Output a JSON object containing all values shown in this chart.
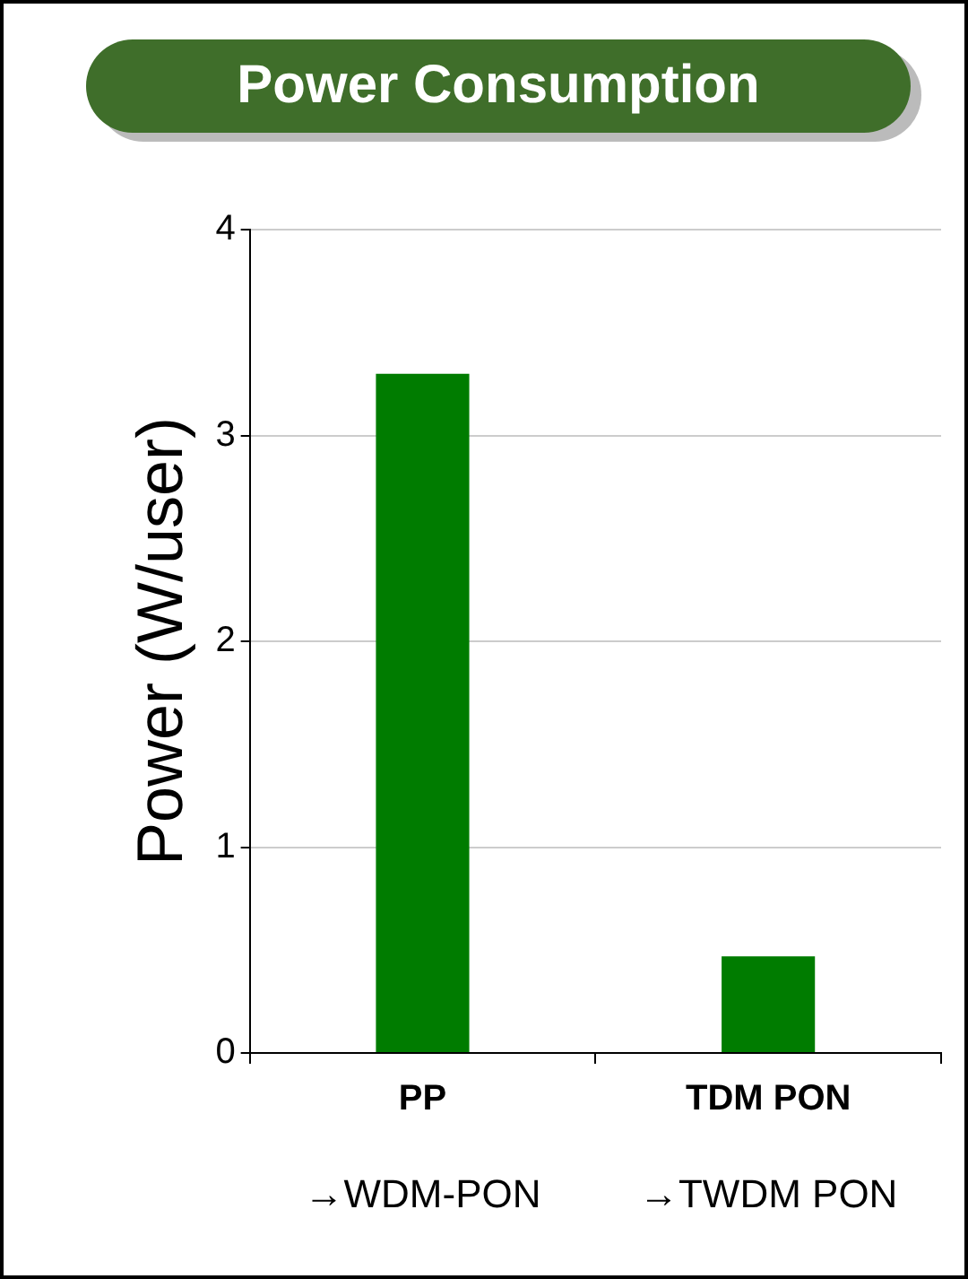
{
  "chart_data": {
    "type": "bar",
    "title": "Power Consumption",
    "ylabel": "Power (W/user)",
    "categories": [
      "PP",
      "TDM PON"
    ],
    "values": [
      3.3,
      0.47
    ],
    "color": "#007c00",
    "ylim": [
      0,
      4
    ],
    "yticks": [
      0,
      1,
      2,
      3,
      4
    ],
    "grid": "y",
    "annotations": [
      "→WDM-PON",
      "→TWDM PON"
    ]
  }
}
